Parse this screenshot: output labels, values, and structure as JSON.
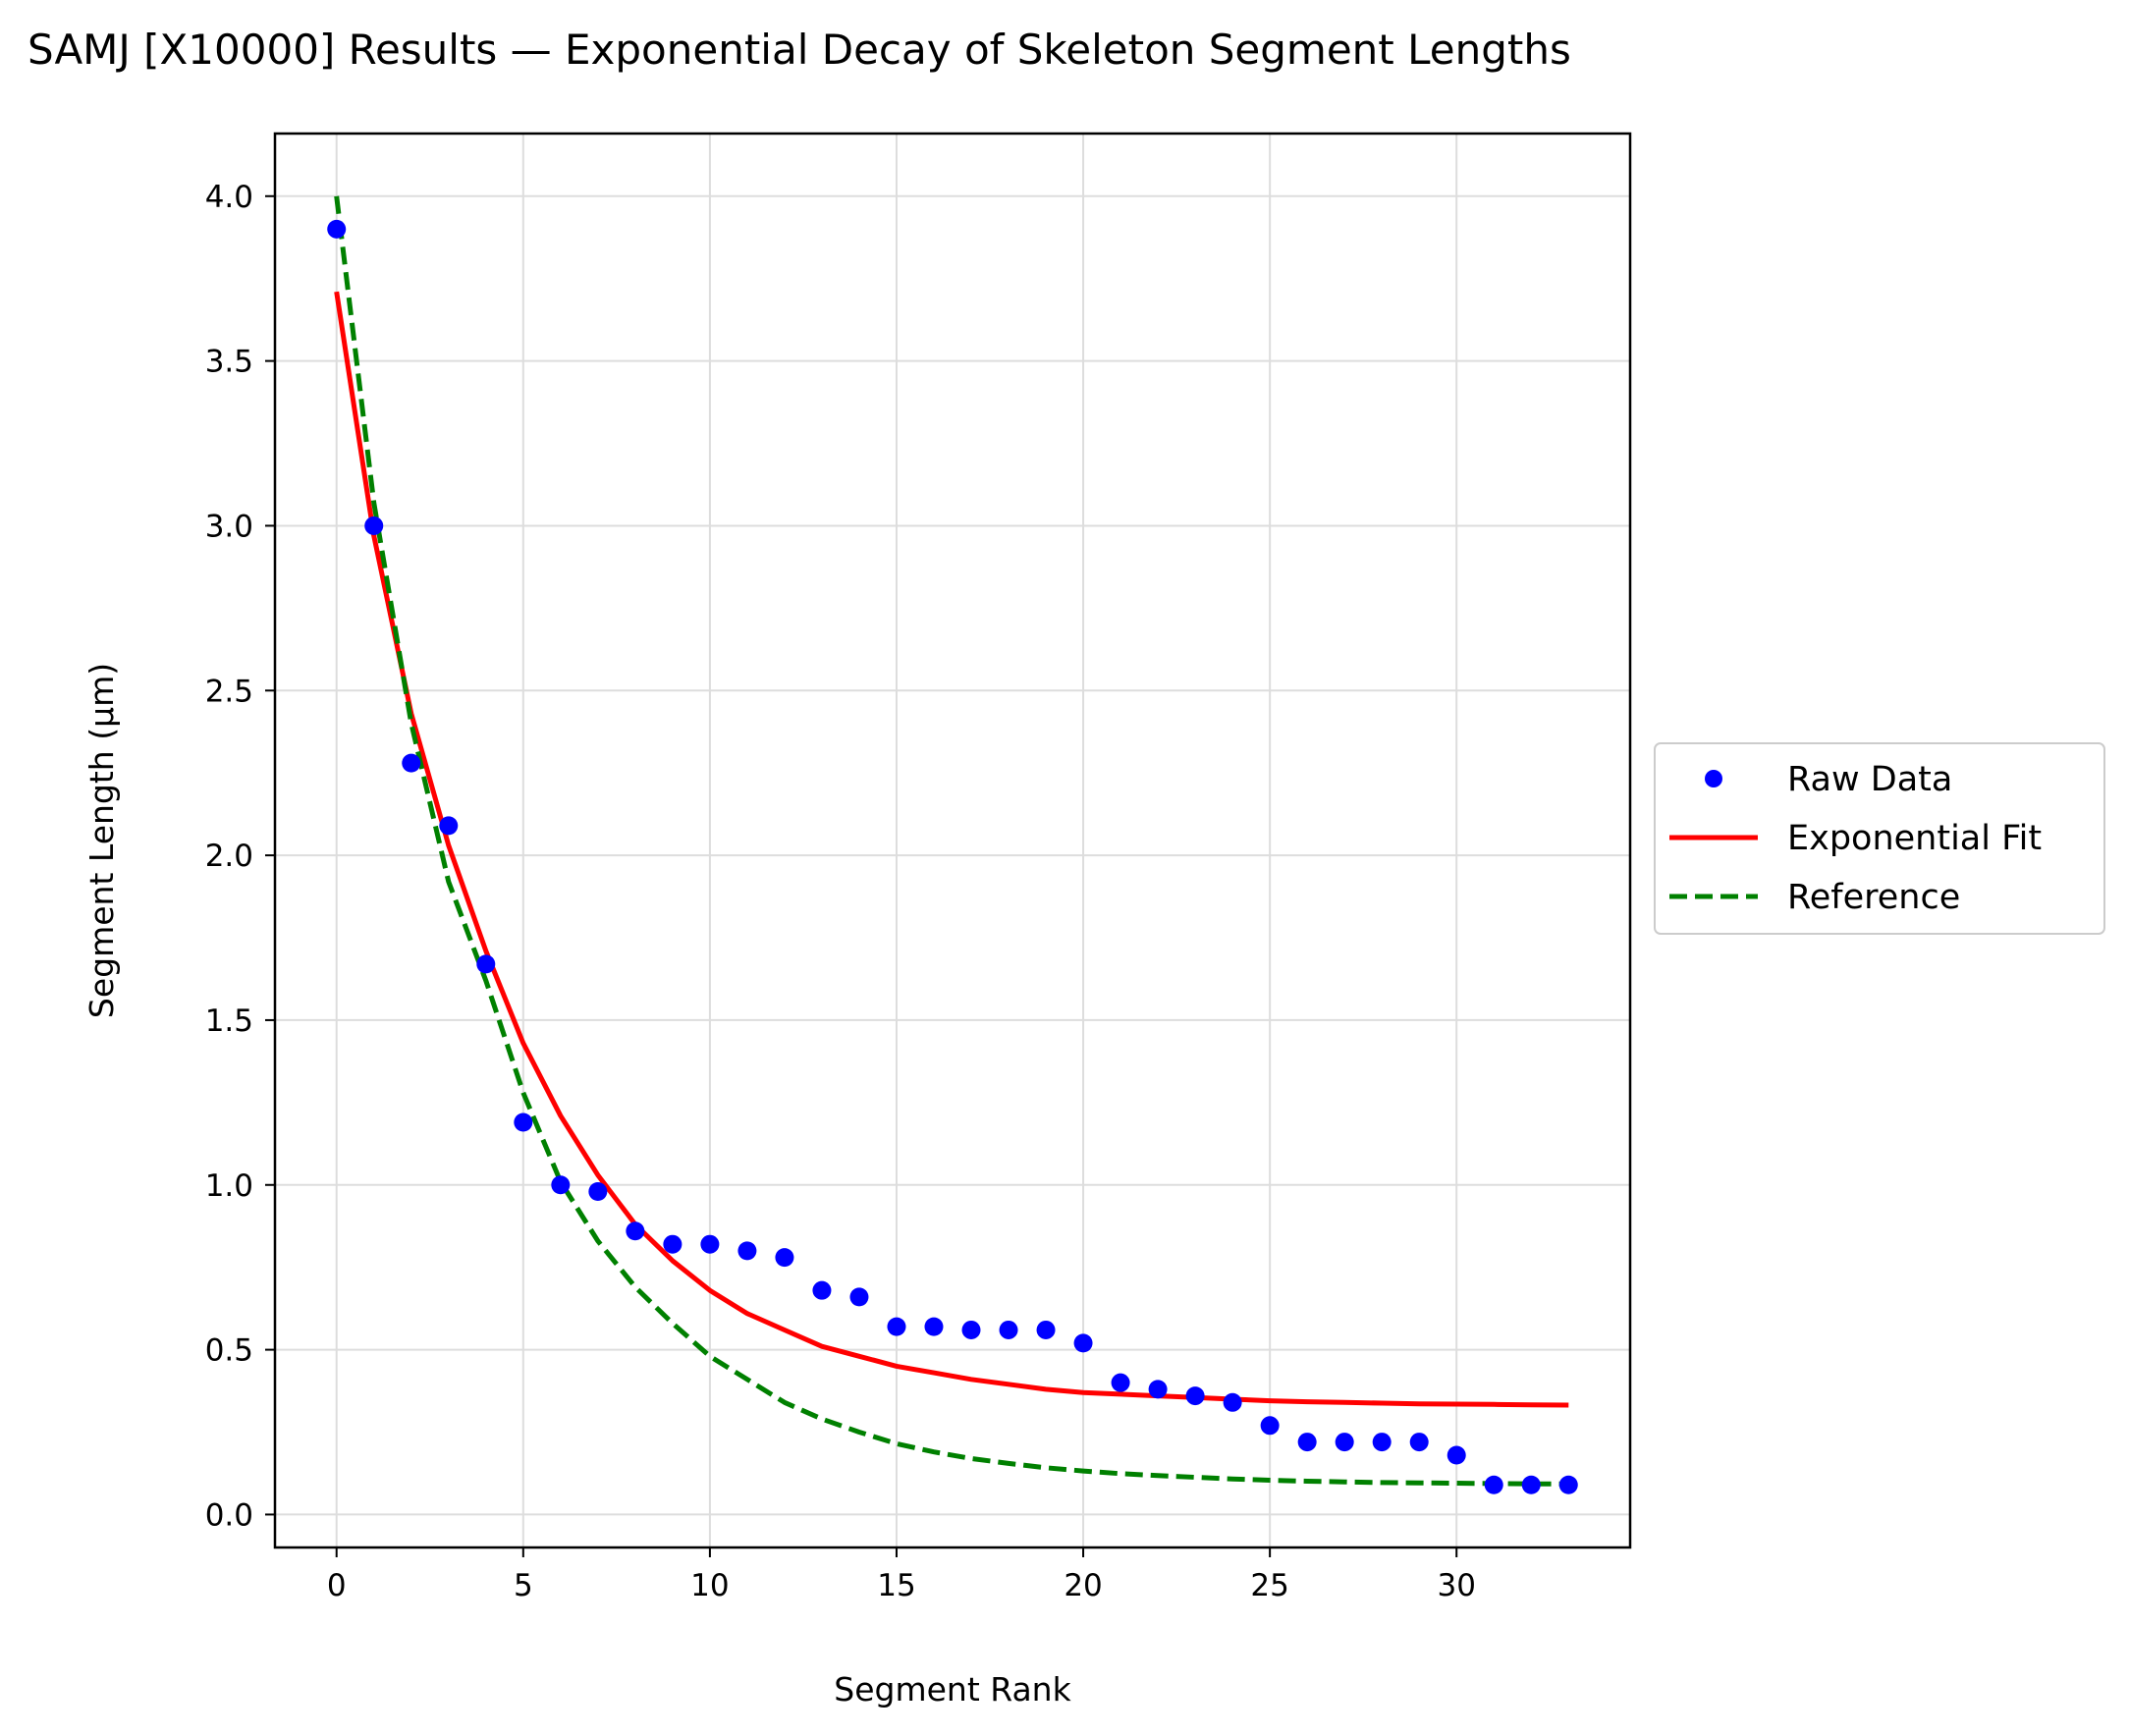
{
  "chart_data": {
    "type": "scatter",
    "title": "SAMJ [X10000] Results — Exponential Decay of Skeleton Segment Lengths",
    "xlabel": "Segment Rank",
    "ylabel": "Segment Length (µm)",
    "xlim": [
      -1.65,
      34.65
    ],
    "ylim": [
      -0.1,
      4.19
    ],
    "xticks": [
      0,
      5,
      10,
      15,
      20,
      25,
      30
    ],
    "xtick_labels": [
      "0",
      "5",
      "10",
      "15",
      "20",
      "25",
      "30"
    ],
    "yticks": [
      0.0,
      0.5,
      1.0,
      1.5,
      2.0,
      2.5,
      3.0,
      3.5,
      4.0
    ],
    "ytick_labels": [
      "0.0",
      "0.5",
      "1.0",
      "1.5",
      "2.0",
      "2.5",
      "3.0",
      "3.5",
      "4.0"
    ],
    "grid": true,
    "legend_position": "right",
    "series": [
      {
        "name": "Raw Data",
        "kind": "scatter",
        "color": "#0000ff",
        "x": [
          0,
          1,
          2,
          3,
          4,
          5,
          6,
          7,
          8,
          9,
          10,
          11,
          12,
          13,
          14,
          15,
          16,
          17,
          18,
          19,
          20,
          21,
          22,
          23,
          24,
          25,
          26,
          27,
          28,
          29,
          30,
          31,
          32,
          33
        ],
        "y": [
          3.9,
          3.0,
          2.28,
          2.09,
          1.67,
          1.19,
          1.0,
          0.98,
          0.86,
          0.82,
          0.82,
          0.8,
          0.78,
          0.68,
          0.66,
          0.57,
          0.57,
          0.56,
          0.56,
          0.56,
          0.52,
          0.4,
          0.38,
          0.36,
          0.34,
          0.27,
          0.22,
          0.22,
          0.22,
          0.22,
          0.18,
          0.09,
          0.09,
          0.09
        ]
      },
      {
        "name": "Exponential Fit",
        "kind": "line",
        "color": "#ff0000",
        "x": [
          0,
          1,
          2,
          3,
          4,
          5,
          6,
          7,
          8,
          9,
          10,
          11,
          12,
          13,
          14,
          15,
          16,
          17,
          18,
          19,
          20,
          21,
          22,
          23,
          24,
          25,
          26,
          27,
          28,
          29,
          30,
          31,
          32,
          33
        ],
        "y": [
          3.71,
          2.97,
          2.43,
          2.03,
          1.71,
          1.43,
          1.21,
          1.03,
          0.88,
          0.77,
          0.68,
          0.61,
          0.56,
          0.51,
          0.48,
          0.45,
          0.43,
          0.41,
          0.395,
          0.38,
          0.37,
          0.365,
          0.36,
          0.355,
          0.35,
          0.345,
          0.342,
          0.34,
          0.338,
          0.336,
          0.335,
          0.334,
          0.333,
          0.332
        ]
      },
      {
        "name": "Reference",
        "kind": "line",
        "dashed": true,
        "color": "#008000",
        "x": [
          0,
          1,
          2,
          3,
          4,
          5,
          6,
          7,
          8,
          9,
          10,
          11,
          12,
          13,
          14,
          15,
          16,
          17,
          18,
          19,
          20,
          21,
          22,
          23,
          24,
          25,
          26,
          27,
          28,
          29,
          30,
          31,
          32,
          33
        ],
        "y": [
          4.0,
          3.07,
          2.4,
          1.92,
          1.62,
          1.28,
          1.01,
          0.83,
          0.69,
          0.58,
          0.48,
          0.41,
          0.34,
          0.29,
          0.25,
          0.215,
          0.19,
          0.17,
          0.155,
          0.142,
          0.132,
          0.124,
          0.118,
          0.113,
          0.108,
          0.104,
          0.101,
          0.099,
          0.097,
          0.096,
          0.095,
          0.094,
          0.093,
          0.093
        ]
      }
    ]
  }
}
